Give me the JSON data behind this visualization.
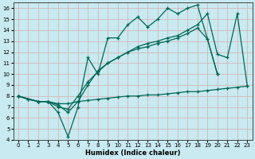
{
  "xlabel": "Humidex (Indice chaleur)",
  "bg_color": "#c8eaf0",
  "grid_color": "#d4b8b8",
  "line_color": "#006655",
  "xlim": [
    -0.5,
    23.5
  ],
  "ylim": [
    4,
    16.5
  ],
  "xticks": [
    0,
    1,
    2,
    3,
    4,
    5,
    6,
    7,
    8,
    9,
    10,
    11,
    12,
    13,
    14,
    15,
    16,
    17,
    18,
    19,
    20,
    21,
    22,
    23
  ],
  "yticks": [
    4,
    5,
    6,
    7,
    8,
    9,
    10,
    11,
    12,
    13,
    14,
    15,
    16
  ],
  "series": [
    {
      "x": [
        0,
        1,
        2,
        3,
        4,
        5,
        6,
        7,
        8,
        9,
        10,
        11,
        12,
        13,
        14,
        15,
        16,
        17,
        18,
        19,
        20,
        21,
        22,
        23
      ],
      "y": [
        8.0,
        7.7,
        7.5,
        7.5,
        7.3,
        7.3,
        7.5,
        7.6,
        7.7,
        7.8,
        7.9,
        8.0,
        8.0,
        8.1,
        8.1,
        8.2,
        8.3,
        8.4,
        8.4,
        8.5,
        8.6,
        8.7,
        8.8,
        8.9
      ]
    },
    {
      "x": [
        0,
        1,
        2,
        3,
        4,
        5,
        6,
        7,
        8,
        9,
        10,
        11,
        12,
        13,
        14,
        15,
        16,
        17,
        18,
        19,
        20,
        21,
        22,
        23
      ],
      "y": [
        8.0,
        7.7,
        7.5,
        7.5,
        6.5,
        4.3,
        7.0,
        11.5,
        10.0,
        13.3,
        13.3,
        14.5,
        15.2,
        14.3,
        15.0,
        16.0,
        15.5,
        16.0,
        16.3,
        13.2,
        10.0,
        null,
        null,
        null
      ]
    },
    {
      "x": [
        0,
        2,
        3,
        4,
        5,
        6,
        7,
        8,
        9,
        10,
        11,
        12,
        13,
        14,
        15,
        16,
        17,
        18,
        19,
        20,
        21,
        22,
        23
      ],
      "y": [
        8.0,
        7.5,
        7.5,
        7.2,
        6.5,
        7.5,
        9.0,
        10.3,
        11.0,
        11.5,
        12.0,
        12.5,
        12.8,
        13.0,
        13.3,
        13.5,
        14.0,
        14.5,
        15.5,
        11.8,
        11.5,
        15.5,
        8.9
      ]
    },
    {
      "x": [
        0,
        2,
        3,
        4,
        5,
        6,
        7,
        8,
        9,
        10,
        11,
        12,
        13,
        14,
        15,
        16,
        17,
        18,
        19,
        20
      ],
      "y": [
        8.0,
        7.5,
        7.5,
        7.0,
        6.8,
        8.0,
        9.3,
        10.2,
        11.0,
        11.5,
        12.0,
        12.3,
        12.5,
        12.8,
        13.0,
        13.3,
        13.7,
        14.2,
        13.2,
        10.0
      ]
    }
  ]
}
